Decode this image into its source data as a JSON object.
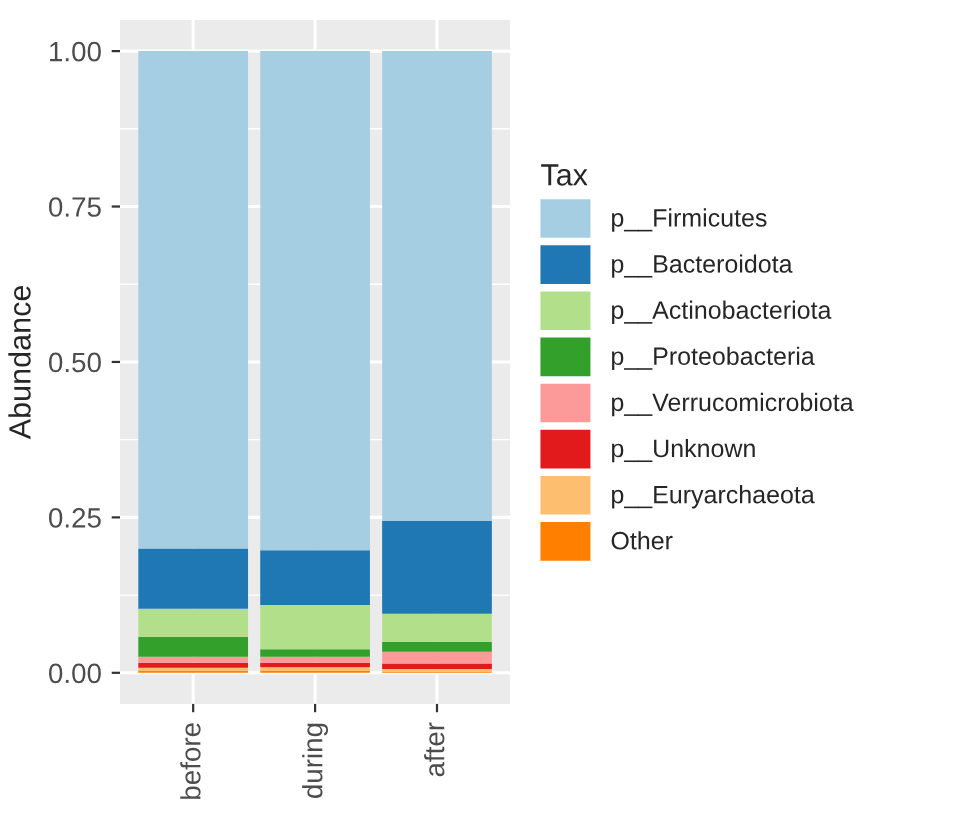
{
  "chart_data": {
    "type": "bar",
    "stacked": true,
    "ylabel": "Abundance",
    "legend_title": "Tax",
    "legend": "right",
    "grid": true,
    "categories": [
      "before",
      "during",
      "after"
    ],
    "ylim": [
      -0.05,
      1.05
    ],
    "yticks": [
      {
        "value": 0,
        "label": "0.00"
      },
      {
        "value": 0.25,
        "label": "0.25"
      },
      {
        "value": 0.5,
        "label": "0.50"
      },
      {
        "value": 0.75,
        "label": "0.75"
      },
      {
        "value": 1,
        "label": "1.00"
      }
    ],
    "series": [
      {
        "name": "Other",
        "color": "#ff7f00",
        "values": [
          0.003,
          0.003,
          0.002
        ]
      },
      {
        "name": "p__Euryarchaeota",
        "color": "#fdbf6f",
        "values": [
          0.005,
          0.006,
          0.004
        ]
      },
      {
        "name": "p__Unknown",
        "color": "#e31a1c",
        "values": [
          0.008,
          0.007,
          0.009
        ]
      },
      {
        "name": "p__Verrucomicrobiota",
        "color": "#fb9a99",
        "values": [
          0.01,
          0.01,
          0.019
        ]
      },
      {
        "name": "p__Proteobacteria",
        "color": "#33a02c",
        "values": [
          0.032,
          0.012,
          0.016
        ]
      },
      {
        "name": "p__Actinobacteriota",
        "color": "#b2df8a",
        "values": [
          0.045,
          0.071,
          0.045
        ]
      },
      {
        "name": "p__Bacteroidota",
        "color": "#1f78b4",
        "values": [
          0.097,
          0.088,
          0.149
        ]
      },
      {
        "name": "p__Firmicutes",
        "color": "#a6cee3",
        "values": [
          0.8,
          0.803,
          0.756
        ]
      }
    ]
  }
}
